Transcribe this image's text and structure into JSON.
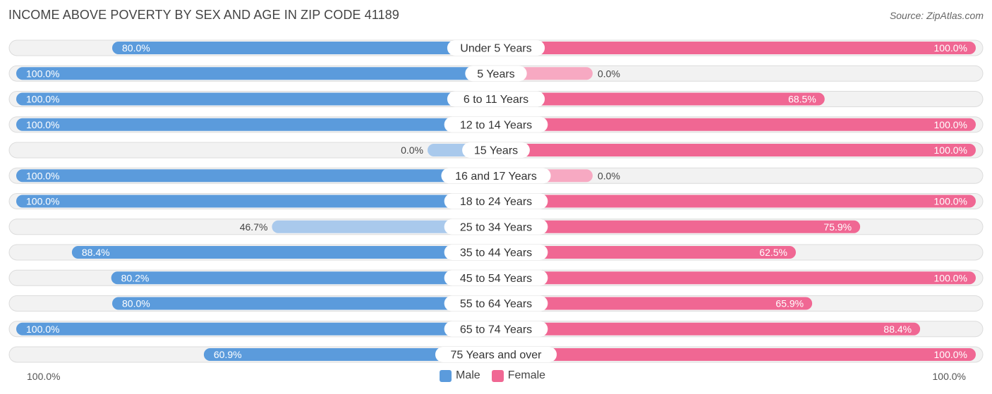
{
  "header": {
    "title": "INCOME ABOVE POVERTY BY SEX AND AGE IN ZIP CODE 41189",
    "source": "Source: ZipAtlas.com"
  },
  "colors": {
    "male_strong": "#5b9bdc",
    "male_light": "#a9c9ec",
    "female_strong": "#f06793",
    "female_light": "#f7a9c2",
    "row_bg": "#f2f2f2",
    "row_border": "#dcdcdc"
  },
  "legend": {
    "male": "Male",
    "female": "Female"
  },
  "axis": {
    "left_label": "100.0%",
    "right_label": "100.0%"
  },
  "chart_data": {
    "type": "bar",
    "orientation": "horizontal-diverging",
    "xlim": [
      0,
      100
    ],
    "categories": [
      "Under 5 Years",
      "5 Years",
      "6 to 11 Years",
      "12 to 14 Years",
      "15 Years",
      "16 and 17 Years",
      "18 to 24 Years",
      "25 to 34 Years",
      "35 to 44 Years",
      "45 to 54 Years",
      "55 to 64 Years",
      "65 to 74 Years",
      "75 Years and over"
    ],
    "series": [
      {
        "name": "Male",
        "values": [
          80.0,
          100.0,
          100.0,
          100.0,
          0.0,
          100.0,
          100.0,
          46.7,
          88.4,
          80.2,
          80.0,
          100.0,
          60.9
        ],
        "labels": [
          "80.0%",
          "100.0%",
          "100.0%",
          "100.0%",
          "0.0%",
          "100.0%",
          "100.0%",
          "46.7%",
          "88.4%",
          "80.2%",
          "80.0%",
          "100.0%",
          "60.9%"
        ]
      },
      {
        "name": "Female",
        "values": [
          100.0,
          0.0,
          68.5,
          100.0,
          100.0,
          0.0,
          100.0,
          75.9,
          62.5,
          100.0,
          65.9,
          88.4,
          100.0
        ],
        "labels": [
          "100.0%",
          "0.0%",
          "68.5%",
          "100.0%",
          "100.0%",
          "0.0%",
          "100.0%",
          "75.9%",
          "62.5%",
          "100.0%",
          "65.9%",
          "88.4%",
          "100.0%"
        ]
      }
    ]
  }
}
